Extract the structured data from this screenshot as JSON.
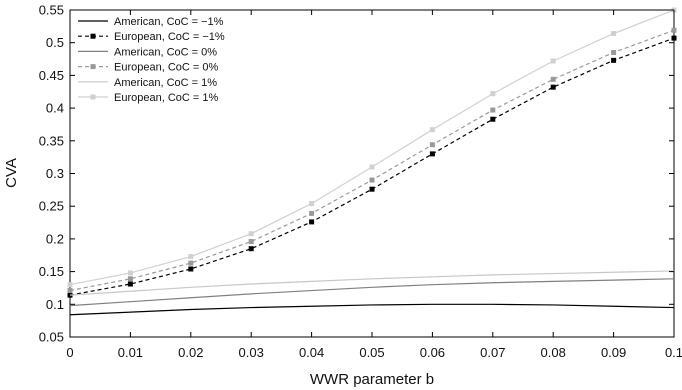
{
  "chart_data": {
    "type": "line",
    "title": "",
    "xlabel": "WWR parameter b",
    "ylabel": "CVA",
    "xlim": [
      0,
      0.1
    ],
    "ylim": [
      0.05,
      0.55
    ],
    "xticks": [
      0,
      0.01,
      0.02,
      0.03,
      0.04,
      0.05,
      0.06,
      0.07,
      0.08,
      0.09,
      0.1
    ],
    "xtick_labels": [
      "0",
      "0.01",
      "0.02",
      "0.03",
      "0.04",
      "0.05",
      "0.06",
      "0.07",
      "0.08",
      "0.09",
      "0.1"
    ],
    "yticks": [
      0.05,
      0.1,
      0.15,
      0.2,
      0.25,
      0.3,
      0.35,
      0.4,
      0.45,
      0.5,
      0.55
    ],
    "ytick_labels": [
      "0.05",
      "0.1",
      "0.15",
      "0.2",
      "0.25",
      "0.3",
      "0.35",
      "0.4",
      "0.45",
      "0.5",
      "0.55"
    ],
    "grid": false,
    "legend_position": "top-left",
    "x": [
      0,
      0.01,
      0.02,
      0.03,
      0.04,
      0.05,
      0.06,
      0.07,
      0.08,
      0.09,
      0.1
    ],
    "series": [
      {
        "name": "American, CoC = −1%",
        "color": "#000000",
        "style": "solid",
        "marker": false,
        "values": [
          0.084,
          0.088,
          0.092,
          0.095,
          0.097,
          0.099,
          0.1,
          0.1,
          0.099,
          0.097,
          0.095
        ]
      },
      {
        "name": "European, CoC = −1%",
        "color": "#000000",
        "style": "dashed",
        "marker": true,
        "values": [
          0.114,
          0.131,
          0.154,
          0.185,
          0.226,
          0.276,
          0.33,
          0.383,
          0.432,
          0.473,
          0.507
        ]
      },
      {
        "name": "American, CoC = 0%",
        "color": "#808080",
        "style": "solid",
        "marker": false,
        "values": [
          0.098,
          0.104,
          0.11,
          0.116,
          0.121,
          0.126,
          0.13,
          0.133,
          0.135,
          0.137,
          0.139
        ]
      },
      {
        "name": "European, CoC = 0%",
        "color": "#999999",
        "style": "dashed",
        "marker": true,
        "values": [
          0.121,
          0.139,
          0.163,
          0.196,
          0.239,
          0.29,
          0.344,
          0.397,
          0.444,
          0.485,
          0.519
        ]
      },
      {
        "name": "American, CoC = 1%",
        "color": "#c8c8c8",
        "style": "solid",
        "marker": false,
        "values": [
          0.114,
          0.12,
          0.126,
          0.131,
          0.135,
          0.139,
          0.142,
          0.145,
          0.147,
          0.149,
          0.151
        ]
      },
      {
        "name": "European, CoC = 1%",
        "color": "#d0d0d0",
        "style": "solid",
        "marker": true,
        "values": [
          0.13,
          0.148,
          0.173,
          0.208,
          0.254,
          0.31,
          0.367,
          0.422,
          0.472,
          0.514,
          0.55
        ]
      }
    ]
  }
}
